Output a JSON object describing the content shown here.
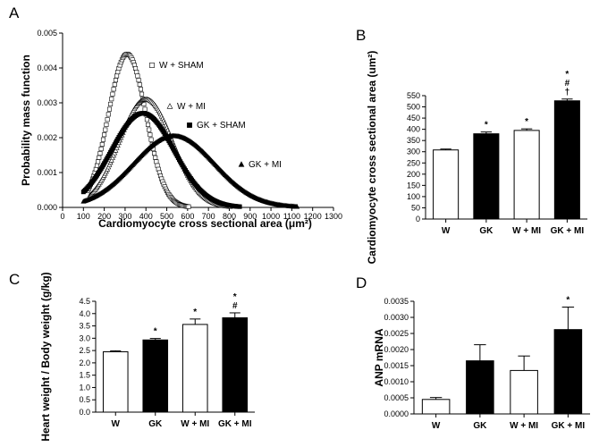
{
  "chart_data": [
    {
      "panel": "A",
      "type": "scatter",
      "xlabel": "Cardiomyocyte cross sectional area (μm²)",
      "ylabel": "Probability mass function",
      "xlim": [
        0,
        1300
      ],
      "ylim": [
        0,
        0.005
      ],
      "xticks": [
        "0",
        "100",
        "200",
        "300",
        "400",
        "500",
        "600",
        "700",
        "800",
        "900",
        "1000",
        "1100",
        "1200",
        "1300"
      ],
      "yticks": [
        "0.000",
        "0.001",
        "0.002",
        "0.003",
        "0.004",
        "0.005"
      ],
      "series": [
        {
          "name": "W + SHAM",
          "marker": "open-square",
          "peak_x": 310,
          "peak_y": 0.0044,
          "sd": 90,
          "x_min": 120,
          "x_max": 740
        },
        {
          "name": "W + MI",
          "marker": "open-triangle",
          "peak_x": 400,
          "peak_y": 0.0031,
          "sd": 128,
          "x_min": 130,
          "x_max": 830
        },
        {
          "name": "GK + SHAM",
          "marker": "filled-square",
          "peak_x": 385,
          "peak_y": 0.0027,
          "sd": 150,
          "x_min": 100,
          "x_max": 1060
        },
        {
          "name": "GK + MI",
          "marker": "filled-triangle",
          "peak_x": 535,
          "peak_y": 0.00205,
          "sd": 195,
          "x_min": 100,
          "x_max": 1200
        }
      ]
    },
    {
      "panel": "B",
      "type": "bar",
      "ylabel": "Cardiomyocyte cross sectional area (um²)",
      "ylim": [
        0,
        550
      ],
      "yticks": [
        "0",
        "50",
        "100",
        "150",
        "200",
        "250",
        "300",
        "350",
        "400",
        "450",
        "500",
        "550"
      ],
      "categories": [
        "W",
        "GK",
        "W + MI",
        "GK + MI"
      ],
      "values": [
        308,
        380,
        395,
        527
      ],
      "errors": [
        4,
        8,
        7,
        8
      ],
      "fills": [
        "open",
        "filled",
        "open",
        "filled"
      ],
      "significance": [
        "",
        "*",
        "*",
        "*\n#\n†"
      ]
    },
    {
      "panel": "C",
      "type": "bar",
      "ylabel": "Heart weight / Body weight (g/kg)",
      "ylim": [
        0,
        4.5
      ],
      "yticks": [
        "0.0",
        "0.5",
        "1.0",
        "1.5",
        "2.0",
        "2.5",
        "3.0",
        "3.5",
        "4.0",
        "4.5"
      ],
      "categories": [
        "W",
        "GK",
        "W + MI",
        "GK + MI"
      ],
      "values": [
        2.45,
        2.93,
        3.56,
        3.83
      ],
      "errors": [
        0.04,
        0.06,
        0.22,
        0.2
      ],
      "fills": [
        "open",
        "filled",
        "open",
        "filled"
      ],
      "significance": [
        "",
        "*",
        "*",
        "*\n#"
      ]
    },
    {
      "panel": "D",
      "type": "bar",
      "ylabel": "ANP mRNA",
      "ylim": [
        0,
        0.0035
      ],
      "yticks": [
        "0.0000",
        "0.0005",
        "0.0010",
        "0.0015",
        "0.0020",
        "0.0025",
        "0.0030",
        "0.0035"
      ],
      "categories": [
        "W",
        "GK",
        "W + MI",
        "GK + MI"
      ],
      "values": [
        0.00045,
        0.00165,
        0.00135,
        0.00262
      ],
      "errors": [
        6e-05,
        0.0005,
        0.00045,
        0.0007
      ],
      "fills": [
        "open",
        "filled",
        "open",
        "filled"
      ],
      "significance": [
        "",
        "",
        "",
        "*"
      ]
    }
  ],
  "colors": {
    "ink": "#000000",
    "open_fill": "#ffffff",
    "filled_fill": "#000000"
  }
}
